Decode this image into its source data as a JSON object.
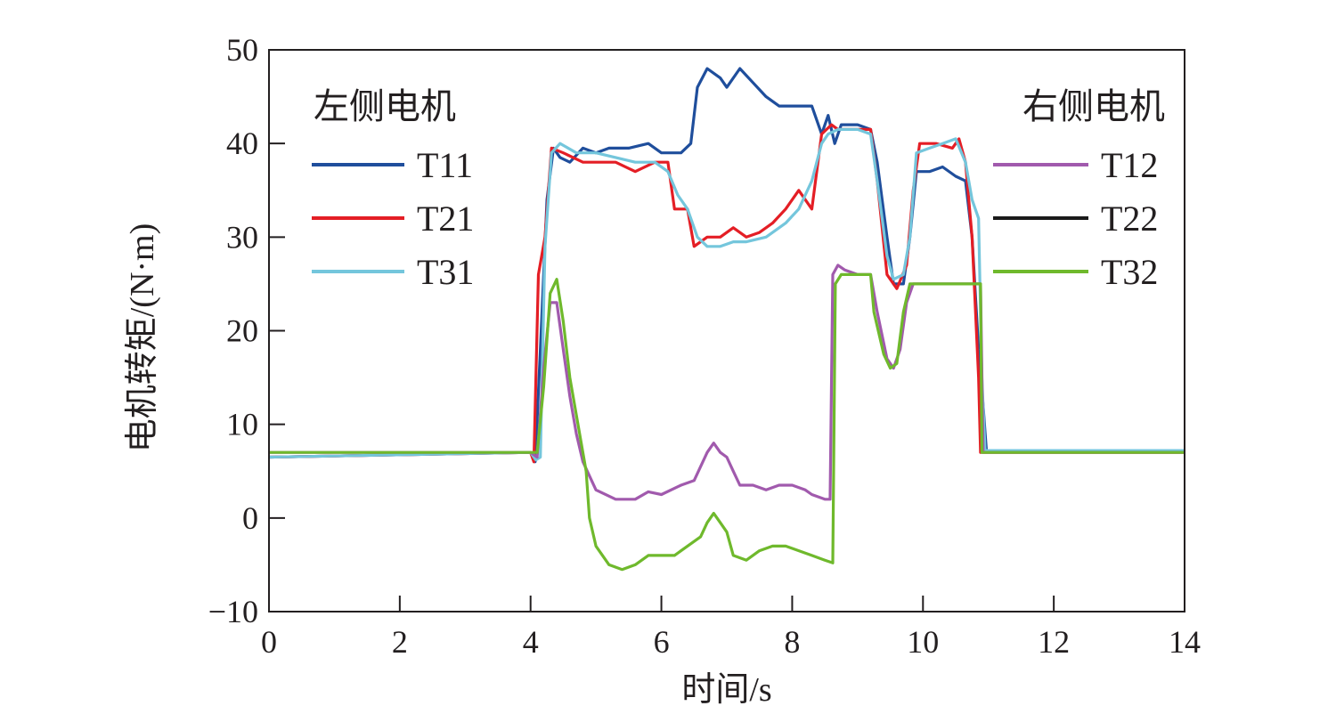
{
  "chart_data": {
    "type": "line",
    "title": "",
    "xlabel": "时间/s",
    "ylabel": "电机转矩/(N·m)",
    "xlim": [
      0,
      14
    ],
    "ylim": [
      -10,
      50
    ],
    "xticks": [
      0,
      2,
      4,
      6,
      8,
      10,
      12,
      14
    ],
    "yticks": [
      -10,
      0,
      10,
      20,
      30,
      40,
      50
    ],
    "xtick_labels": [
      "0",
      "2",
      "4",
      "6",
      "8",
      "10",
      "12",
      "14"
    ],
    "ytick_labels": [
      "−10",
      "0",
      "10",
      "20",
      "30",
      "40",
      "50"
    ],
    "grid": false,
    "legend_groups": [
      {
        "title": "左侧电机",
        "position": "top-left",
        "series": [
          "T11",
          "T21",
          "T31"
        ]
      },
      {
        "title": "右侧电机",
        "position": "top-right",
        "series": [
          "T12",
          "T22",
          "T32"
        ]
      }
    ],
    "series": [
      {
        "name": "T11",
        "color": "#1f4e9c",
        "points": [
          [
            0,
            6.5
          ],
          [
            4.0,
            7.0
          ],
          [
            4.07,
            6.0
          ],
          [
            4.15,
            18
          ],
          [
            4.25,
            34
          ],
          [
            4.35,
            39.5
          ],
          [
            4.45,
            38.5
          ],
          [
            4.6,
            38
          ],
          [
            4.8,
            39.5
          ],
          [
            5.0,
            39
          ],
          [
            5.2,
            39.5
          ],
          [
            5.5,
            39.5
          ],
          [
            5.8,
            40
          ],
          [
            6.0,
            39
          ],
          [
            6.2,
            39
          ],
          [
            6.3,
            39
          ],
          [
            6.45,
            40
          ],
          [
            6.55,
            46
          ],
          [
            6.7,
            48
          ],
          [
            6.9,
            47
          ],
          [
            7.0,
            46
          ],
          [
            7.2,
            48
          ],
          [
            7.4,
            46.5
          ],
          [
            7.6,
            45
          ],
          [
            7.8,
            44
          ],
          [
            8.0,
            44
          ],
          [
            8.3,
            44
          ],
          [
            8.45,
            41
          ],
          [
            8.55,
            43
          ],
          [
            8.65,
            40
          ],
          [
            8.75,
            42
          ],
          [
            9.0,
            42
          ],
          [
            9.2,
            41.5
          ],
          [
            9.3,
            38
          ],
          [
            9.45,
            30
          ],
          [
            9.55,
            25
          ],
          [
            9.7,
            25
          ],
          [
            9.8,
            30
          ],
          [
            9.9,
            37
          ],
          [
            10.1,
            37
          ],
          [
            10.3,
            37.5
          ],
          [
            10.5,
            36.5
          ],
          [
            10.65,
            36
          ],
          [
            10.75,
            30
          ],
          [
            10.85,
            18
          ],
          [
            10.92,
            12
          ],
          [
            10.97,
            7.2
          ],
          [
            14,
            7.2
          ]
        ]
      },
      {
        "name": "T21",
        "color": "#e41e25",
        "points": [
          [
            0,
            6.5
          ],
          [
            4.0,
            7.0
          ],
          [
            4.05,
            6.0
          ],
          [
            4.12,
            26
          ],
          [
            4.22,
            30
          ],
          [
            4.32,
            39.5
          ],
          [
            4.5,
            39
          ],
          [
            4.8,
            38
          ],
          [
            5.0,
            38
          ],
          [
            5.3,
            38
          ],
          [
            5.6,
            37
          ],
          [
            5.9,
            38
          ],
          [
            6.1,
            38
          ],
          [
            6.2,
            33
          ],
          [
            6.4,
            33
          ],
          [
            6.5,
            29
          ],
          [
            6.7,
            30
          ],
          [
            6.9,
            30
          ],
          [
            7.1,
            31
          ],
          [
            7.3,
            30
          ],
          [
            7.5,
            30.5
          ],
          [
            7.7,
            31.5
          ],
          [
            7.9,
            33
          ],
          [
            8.1,
            35
          ],
          [
            8.3,
            33
          ],
          [
            8.45,
            41
          ],
          [
            8.6,
            42
          ],
          [
            8.7,
            41.5
          ],
          [
            9.0,
            41.5
          ],
          [
            9.2,
            41.5
          ],
          [
            9.3,
            36
          ],
          [
            9.45,
            26
          ],
          [
            9.6,
            24.5
          ],
          [
            9.75,
            27
          ],
          [
            9.85,
            35
          ],
          [
            9.95,
            40
          ],
          [
            10.2,
            40
          ],
          [
            10.45,
            39.5
          ],
          [
            10.55,
            40.5
          ],
          [
            10.65,
            38
          ],
          [
            10.75,
            30
          ],
          [
            10.85,
            15
          ],
          [
            10.88,
            7
          ],
          [
            14,
            7
          ]
        ]
      },
      {
        "name": "T31",
        "color": "#74c6dc",
        "points": [
          [
            0,
            6.5
          ],
          [
            4.0,
            7.0
          ],
          [
            4.08,
            6.2
          ],
          [
            4.15,
            6.5
          ],
          [
            4.22,
            29
          ],
          [
            4.32,
            39
          ],
          [
            4.45,
            40
          ],
          [
            4.7,
            39
          ],
          [
            5.0,
            39
          ],
          [
            5.3,
            38.5
          ],
          [
            5.6,
            38
          ],
          [
            5.9,
            38
          ],
          [
            6.1,
            37
          ],
          [
            6.25,
            34.5
          ],
          [
            6.4,
            33
          ],
          [
            6.55,
            30
          ],
          [
            6.7,
            29
          ],
          [
            6.9,
            29
          ],
          [
            7.1,
            29.5
          ],
          [
            7.3,
            29.5
          ],
          [
            7.6,
            30
          ],
          [
            7.9,
            31.5
          ],
          [
            8.1,
            33
          ],
          [
            8.3,
            36
          ],
          [
            8.45,
            40
          ],
          [
            8.55,
            41
          ],
          [
            8.7,
            41.5
          ],
          [
            9.0,
            41.5
          ],
          [
            9.2,
            41
          ],
          [
            9.3,
            36
          ],
          [
            9.45,
            28
          ],
          [
            9.55,
            25.5
          ],
          [
            9.7,
            26
          ],
          [
            9.8,
            30
          ],
          [
            9.9,
            39
          ],
          [
            10.1,
            39.5
          ],
          [
            10.3,
            40
          ],
          [
            10.5,
            40.5
          ],
          [
            10.65,
            38
          ],
          [
            10.75,
            34
          ],
          [
            10.85,
            32
          ],
          [
            10.9,
            15
          ],
          [
            10.95,
            7.2
          ],
          [
            14,
            7.2
          ]
        ]
      },
      {
        "name": "T12",
        "color": "#a15aad",
        "points": [
          [
            0,
            7.0
          ],
          [
            4.0,
            7.0
          ],
          [
            4.1,
            6.5
          ],
          [
            4.2,
            16
          ],
          [
            4.3,
            23
          ],
          [
            4.4,
            23
          ],
          [
            4.5,
            18
          ],
          [
            4.6,
            13
          ],
          [
            4.7,
            9
          ],
          [
            4.8,
            6
          ],
          [
            5.0,
            3
          ],
          [
            5.3,
            2
          ],
          [
            5.6,
            2
          ],
          [
            5.8,
            2.8
          ],
          [
            6.0,
            2.5
          ],
          [
            6.3,
            3.5
          ],
          [
            6.5,
            4
          ],
          [
            6.7,
            7
          ],
          [
            6.8,
            8
          ],
          [
            6.9,
            7
          ],
          [
            7.0,
            6.5
          ],
          [
            7.1,
            5
          ],
          [
            7.2,
            3.5
          ],
          [
            7.4,
            3.5
          ],
          [
            7.6,
            3
          ],
          [
            7.8,
            3.5
          ],
          [
            8.0,
            3.5
          ],
          [
            8.2,
            3
          ],
          [
            8.3,
            2.5
          ],
          [
            8.5,
            2
          ],
          [
            8.58,
            2
          ],
          [
            8.62,
            26
          ],
          [
            8.7,
            27
          ],
          [
            8.8,
            26.5
          ],
          [
            9.0,
            26
          ],
          [
            9.2,
            26
          ],
          [
            9.3,
            22
          ],
          [
            9.45,
            17
          ],
          [
            9.55,
            16
          ],
          [
            9.65,
            18
          ],
          [
            9.75,
            23
          ],
          [
            9.85,
            25
          ],
          [
            10.1,
            25
          ],
          [
            10.4,
            25
          ],
          [
            10.6,
            25
          ],
          [
            10.8,
            25
          ],
          [
            10.88,
            25
          ],
          [
            10.92,
            7
          ],
          [
            14,
            7
          ]
        ]
      },
      {
        "name": "T22",
        "color": "#1a1a1a",
        "points": []
      },
      {
        "name": "T32",
        "color": "#6fb92c",
        "points": [
          [
            0,
            7.0
          ],
          [
            4.0,
            7.0
          ],
          [
            4.1,
            7
          ],
          [
            4.2,
            14
          ],
          [
            4.3,
            24
          ],
          [
            4.4,
            25.5
          ],
          [
            4.5,
            21
          ],
          [
            4.6,
            15
          ],
          [
            4.7,
            11
          ],
          [
            4.85,
            5
          ],
          [
            4.9,
            0
          ],
          [
            5.0,
            -3
          ],
          [
            5.2,
            -5
          ],
          [
            5.4,
            -5.5
          ],
          [
            5.6,
            -5
          ],
          [
            5.8,
            -4
          ],
          [
            6.0,
            -4
          ],
          [
            6.2,
            -4
          ],
          [
            6.4,
            -3
          ],
          [
            6.6,
            -2
          ],
          [
            6.7,
            -0.5
          ],
          [
            6.8,
            0.5
          ],
          [
            6.9,
            -0.5
          ],
          [
            7.0,
            -1.5
          ],
          [
            7.1,
            -4
          ],
          [
            7.3,
            -4.5
          ],
          [
            7.5,
            -3.5
          ],
          [
            7.7,
            -3
          ],
          [
            7.9,
            -3
          ],
          [
            8.1,
            -3.5
          ],
          [
            8.3,
            -4
          ],
          [
            8.5,
            -4.5
          ],
          [
            8.62,
            -4.8
          ],
          [
            8.66,
            25
          ],
          [
            8.75,
            26
          ],
          [
            9.0,
            26
          ],
          [
            9.2,
            26
          ],
          [
            9.25,
            22
          ],
          [
            9.4,
            17.5
          ],
          [
            9.5,
            16
          ],
          [
            9.6,
            16.5
          ],
          [
            9.7,
            22
          ],
          [
            9.8,
            25
          ],
          [
            10.0,
            25
          ],
          [
            10.3,
            25
          ],
          [
            10.6,
            25
          ],
          [
            10.88,
            25
          ],
          [
            10.9,
            7
          ],
          [
            14,
            7
          ]
        ]
      }
    ]
  }
}
